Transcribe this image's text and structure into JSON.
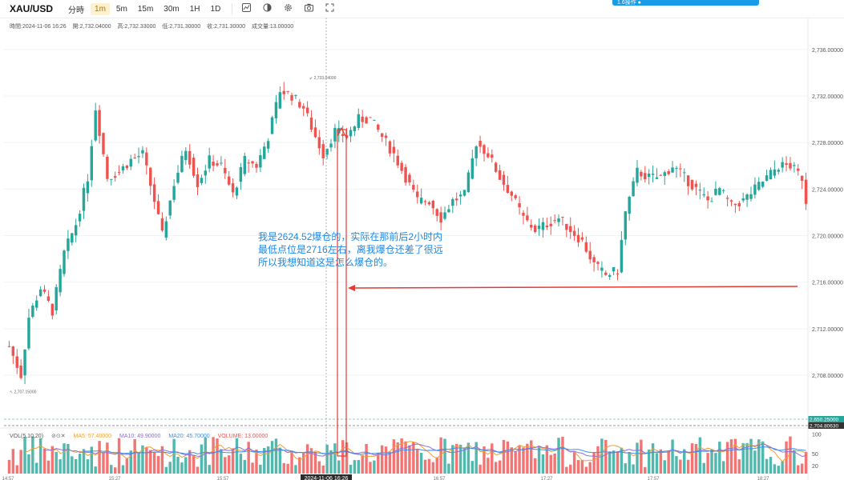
{
  "toolbar": {
    "symbol": "XAU/USD",
    "timeframes": [
      "分時",
      "1m",
      "5m",
      "15m",
      "30m",
      "1H",
      "1D"
    ],
    "active_timeframe": "1m",
    "tools": [
      "indicator-icon",
      "theme-icon",
      "settings-icon",
      "camera-icon",
      "fullscreen-icon"
    ],
    "banner_text": "1.6操作 ●"
  },
  "ohlc": {
    "time": "時間:2024-11-06 16:26",
    "open": "開:2,732.04000",
    "high": "高:2,732.33000",
    "low": "低:2,731.30000",
    "close": "收:2,731.30000",
    "volume": "成交量:13.00000"
  },
  "annotation": {
    "lines": [
      "我是2624.52爆仓的，实际在那前后2小时内",
      "最低点位是2716左右，离我爆仓还差了很远",
      "所以我想知道这是怎么爆仓的。"
    ]
  },
  "volume_legend": {
    "title": "VOL(5,10,20)",
    "ma5": "MA5: 57.40000",
    "ma10": "MA10: 49.90000",
    "ma20": "MA20: 45.70000",
    "volume": "VOLUME: 13.00000"
  },
  "colors": {
    "up": "#26a69a",
    "down": "#ef5350",
    "ma5": "#f0a030",
    "ma10": "#8e6cd8",
    "ma20": "#3d8ee8",
    "arrow": "#e53935"
  },
  "chart_data": {
    "type": "candlestick",
    "price_axis": {
      "ticks": [
        2708,
        2712,
        2716,
        2720,
        2724,
        2728,
        2732,
        2736
      ],
      "tick_labels": [
        "2,708.00000",
        "2,712.00000",
        "2,716.00000",
        "2,720.00000",
        "2,724.00000",
        "2,728.00000",
        "2,732.00000",
        "2,736.00000"
      ],
      "range": [
        2704.5,
        2737.5
      ]
    },
    "volume_axis": {
      "ticks": [
        20,
        50,
        100
      ],
      "tick_labels": [
        "20",
        "50",
        "100"
      ],
      "range": [
        0,
        105
      ]
    },
    "time_labels": [
      "14:57",
      "15:27",
      "15:57",
      "2024-11-06 16:26",
      "16:57",
      "17:27",
      "17:57",
      "18:27"
    ],
    "crosshair_time": "2024-11-06 16:26",
    "price_tags": [
      {
        "label": "2,650.25000",
        "value": 2705.6,
        "color": "#26a69a"
      },
      {
        "label": "2,704.80630",
        "value": 2704.8,
        "color": "#333333"
      }
    ],
    "high_marker": {
      "label": "2,733.04000",
      "value": 2733.04
    },
    "low_marker": {
      "label": "2,707.15000",
      "value": 2707.15
    },
    "waypoints": [
      [
        0,
        2710.5
      ],
      [
        3,
        2708.0
      ],
      [
        5,
        2713.0
      ],
      [
        8,
        2715.5
      ],
      [
        11,
        2713.5
      ],
      [
        14,
        2718.5
      ],
      [
        17,
        2721.0
      ],
      [
        20,
        2725.0
      ],
      [
        22,
        2731.0
      ],
      [
        25,
        2725.0
      ],
      [
        28,
        2725.5
      ],
      [
        31,
        2726.5
      ],
      [
        34,
        2727.0
      ],
      [
        37,
        2723.0
      ],
      [
        39,
        2720.0
      ],
      [
        42,
        2724.5
      ],
      [
        45,
        2727.5
      ],
      [
        48,
        2724.5
      ],
      [
        51,
        2726.5
      ],
      [
        54,
        2726.0
      ],
      [
        57,
        2723.5
      ],
      [
        60,
        2726.5
      ],
      [
        63,
        2726.0
      ],
      [
        66,
        2728.5
      ],
      [
        69,
        2732.5
      ],
      [
        72,
        2732.0
      ],
      [
        75,
        2731.0
      ],
      [
        78,
        2728.5
      ],
      [
        80,
        2727.0
      ],
      [
        83,
        2729.0
      ],
      [
        86,
        2728.5
      ],
      [
        89,
        2730.0
      ],
      [
        92,
        2730.0
      ],
      [
        95,
        2728.5
      ],
      [
        98,
        2727.0
      ],
      [
        101,
        2725.0
      ],
      [
        104,
        2723.0
      ],
      [
        107,
        2723.0
      ],
      [
        110,
        2721.5
      ],
      [
        113,
        2723.0
      ],
      [
        116,
        2723.5
      ],
      [
        119,
        2728.0
      ],
      [
        122,
        2727.0
      ],
      [
        125,
        2725.0
      ],
      [
        128,
        2723.5
      ],
      [
        131,
        2721.5
      ],
      [
        134,
        2720.5
      ],
      [
        137,
        2721.0
      ],
      [
        140,
        2721.5
      ],
      [
        143,
        2720.5
      ],
      [
        146,
        2719.5
      ],
      [
        149,
        2717.5
      ],
      [
        152,
        2716.6
      ],
      [
        155,
        2717.0
      ],
      [
        157,
        2722.0
      ],
      [
        160,
        2725.5
      ],
      [
        163,
        2725.0
      ],
      [
        166,
        2725.0
      ],
      [
        169,
        2726.0
      ],
      [
        172,
        2725.0
      ],
      [
        175,
        2724.0
      ],
      [
        178,
        2723.0
      ],
      [
        181,
        2724.0
      ],
      [
        184,
        2722.5
      ],
      [
        187,
        2723.0
      ],
      [
        190,
        2724.0
      ],
      [
        193,
        2725.0
      ],
      [
        196,
        2726.0
      ],
      [
        199,
        2726.0
      ],
      [
        202,
        2725.0
      ],
      [
        203,
        2723.0
      ]
    ],
    "volume_series": {
      "name": "VOLUME"
    }
  }
}
